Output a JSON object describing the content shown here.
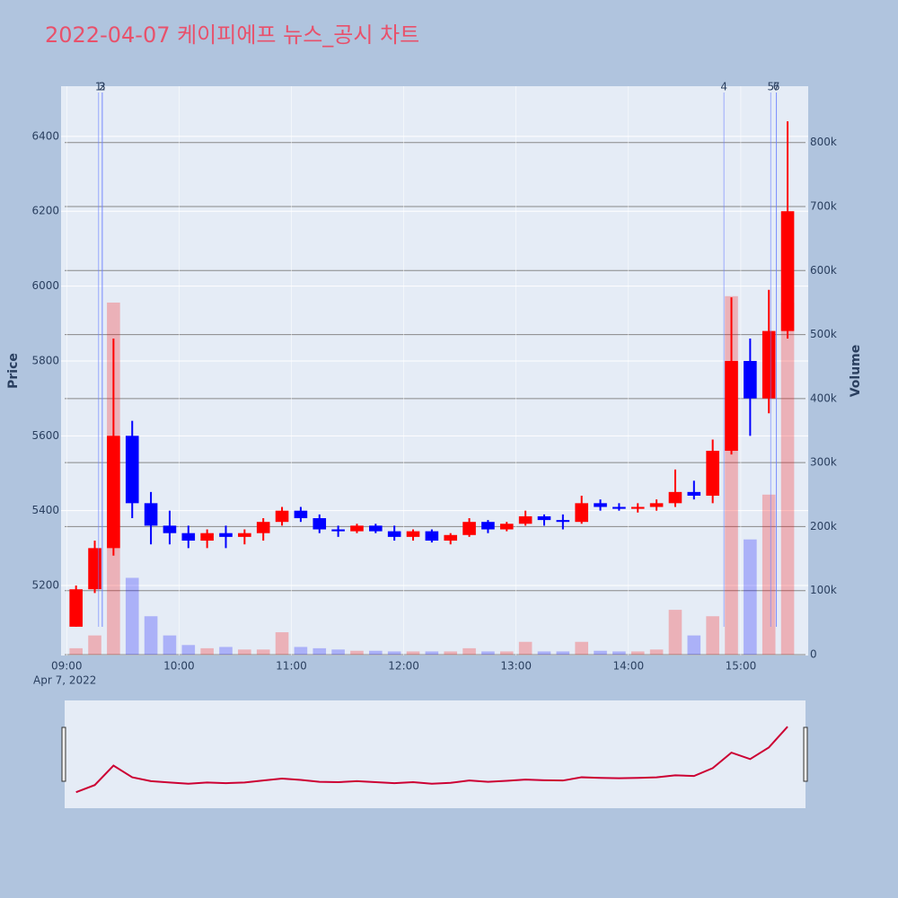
{
  "chart_data": {
    "type": "candlestick",
    "title": "2022-04-07 케이피에프 뉴스_공시 차트",
    "y_label": "Price",
    "y2_label": "Volume",
    "x_date_label": "Apr 7, 2022",
    "up_color": "#ff0000",
    "down_color": "#0000ff",
    "x": [
      "09:00",
      "09:10",
      "09:20",
      "09:30",
      "09:40",
      "09:50",
      "10:00",
      "10:10",
      "10:20",
      "10:30",
      "10:40",
      "10:50",
      "11:00",
      "11:10",
      "11:20",
      "11:30",
      "11:40",
      "11:50",
      "12:00",
      "12:10",
      "12:20",
      "12:30",
      "12:40",
      "12:50",
      "13:00",
      "13:10",
      "13:20",
      "13:30",
      "13:40",
      "13:50",
      "14:00",
      "14:10",
      "14:20",
      "14:30",
      "14:40",
      "14:50",
      "15:00",
      "15:10",
      "15:20"
    ],
    "open": [
      5090,
      5190,
      5300,
      5600,
      5420,
      5360,
      5340,
      5320,
      5340,
      5330,
      5340,
      5370,
      5400,
      5380,
      5350,
      5345,
      5360,
      5345,
      5330,
      5345,
      5320,
      5335,
      5370,
      5350,
      5365,
      5385,
      5375,
      5370,
      5420,
      5410,
      5405,
      5410,
      5420,
      5450,
      5440,
      5560,
      5800,
      5700,
      5880
    ],
    "high": [
      5200,
      5320,
      5860,
      5640,
      5450,
      5400,
      5360,
      5350,
      5360,
      5350,
      5380,
      5410,
      5410,
      5390,
      5360,
      5365,
      5365,
      5360,
      5350,
      5350,
      5340,
      5380,
      5375,
      5370,
      5400,
      5390,
      5390,
      5440,
      5430,
      5420,
      5420,
      5430,
      5510,
      5480,
      5590,
      5970,
      5860,
      5990,
      6440
    ],
    "low": [
      5090,
      5180,
      5280,
      5380,
      5310,
      5310,
      5300,
      5300,
      5300,
      5310,
      5320,
      5360,
      5370,
      5340,
      5330,
      5340,
      5340,
      5320,
      5320,
      5315,
      5310,
      5330,
      5340,
      5345,
      5360,
      5360,
      5350,
      5365,
      5400,
      5400,
      5395,
      5400,
      5410,
      5430,
      5420,
      5550,
      5600,
      5660,
      5860
    ],
    "close": [
      5190,
      5300,
      5600,
      5420,
      5360,
      5340,
      5320,
      5340,
      5330,
      5340,
      5370,
      5400,
      5380,
      5350,
      5345,
      5360,
      5345,
      5330,
      5345,
      5320,
      5335,
      5370,
      5350,
      5365,
      5385,
      5375,
      5370,
      5420,
      5410,
      5405,
      5410,
      5420,
      5450,
      5440,
      5560,
      5800,
      5700,
      5880,
      6200
    ],
    "volume": [
      10000,
      30000,
      550000,
      120000,
      60000,
      30000,
      15000,
      10000,
      12000,
      8000,
      8000,
      35000,
      12000,
      10000,
      8000,
      6000,
      6000,
      5000,
      5000,
      5000,
      5000,
      10000,
      5000,
      5000,
      20000,
      5000,
      5000,
      20000,
      6000,
      5000,
      5000,
      8000,
      70000,
      30000,
      60000,
      560000,
      180000,
      250000,
      550000
    ],
    "xlim": [
      "08:57",
      "15:36"
    ],
    "xticks": [
      "09:00",
      "10:00",
      "11:00",
      "12:00",
      "13:00",
      "14:00",
      "15:00"
    ],
    "ylim": [
      5013,
      6534
    ],
    "yticks": [
      5200,
      5400,
      5600,
      5800,
      6000,
      6200,
      6400
    ],
    "y2lim": [
      0,
      888000
    ],
    "y2ticks": [
      0,
      {
        "value": 100000,
        "label": "100k"
      },
      {
        "value": 200000,
        "label": "200k"
      },
      {
        "value": 300000,
        "label": "300k"
      },
      {
        "value": 400000,
        "label": "400k"
      },
      {
        "value": 500000,
        "label": "500k"
      },
      {
        "value": 600000,
        "label": "600k"
      },
      {
        "value": 700000,
        "label": "700k"
      },
      {
        "value": 800000,
        "label": "800k"
      }
    ],
    "news_x": [
      "09:17",
      "09:19",
      "09:19",
      "14:51",
      "15:16",
      "15:19",
      "15:19"
    ],
    "news_labels": [
      "1",
      "2",
      "3",
      "4",
      "5",
      "6",
      "7"
    ]
  }
}
